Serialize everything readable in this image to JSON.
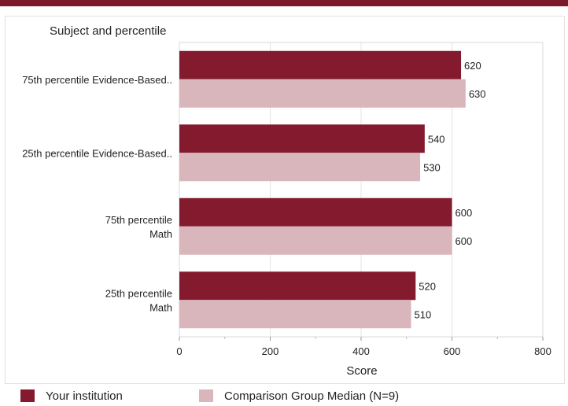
{
  "chart_data": {
    "type": "bar",
    "orientation": "horizontal",
    "y_axis_title": "Subject and percentile",
    "xlabel": "Score",
    "xlim": [
      0,
      800
    ],
    "xticks": [
      0,
      200,
      400,
      600,
      800
    ],
    "categories": [
      [
        "75th percentile Evidence-Based.."
      ],
      [
        "25th percentile Evidence-Based.."
      ],
      [
        "75th percentile",
        "Math"
      ],
      [
        "25th percentile",
        "Math"
      ]
    ],
    "series": [
      {
        "name": "Your institution",
        "color": "#841a2e",
        "values": [
          620,
          540,
          600,
          520
        ]
      },
      {
        "name": "Comparison Group Median (N=9)",
        "color": "#d9b5bc",
        "values": [
          630,
          530,
          600,
          510
        ]
      }
    ],
    "grid": "vertical",
    "legend_position": "bottom"
  }
}
